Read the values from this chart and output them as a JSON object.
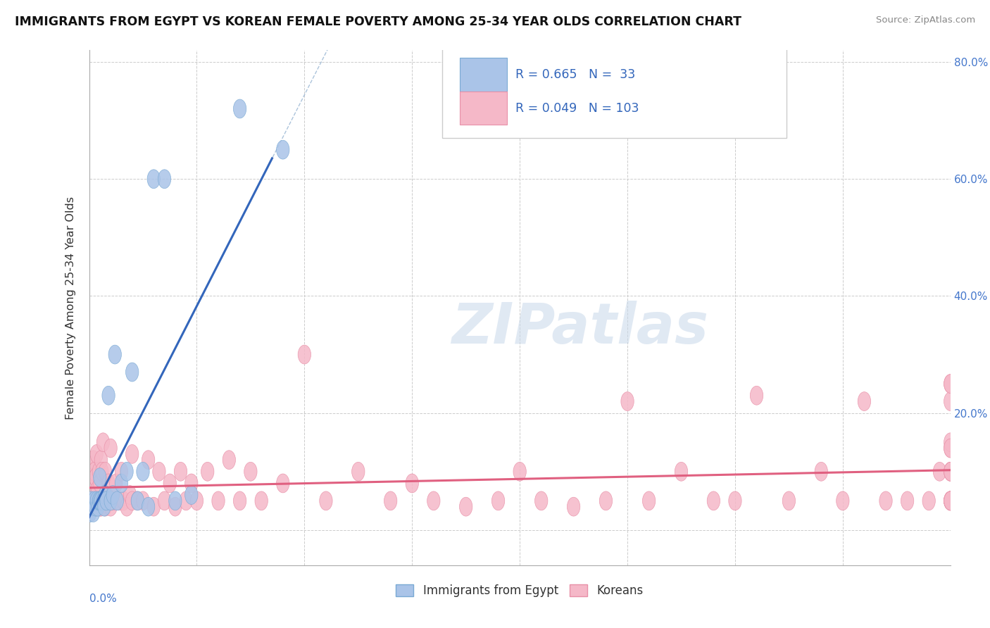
{
  "title": "IMMIGRANTS FROM EGYPT VS KOREAN FEMALE POVERTY AMONG 25-34 YEAR OLDS CORRELATION CHART",
  "source": "Source: ZipAtlas.com",
  "ylabel": "Female Poverty Among 25-34 Year Olds",
  "egypt_R": 0.665,
  "egypt_N": 33,
  "korean_R": 0.049,
  "korean_N": 103,
  "egypt_color": "#aac4e8",
  "egypt_edge": "#7aaad4",
  "egypt_line_color": "#3366bb",
  "korean_color": "#f5b8c8",
  "korean_edge": "#e890a8",
  "korean_line_color": "#e06080",
  "watermark_color": "#d8e4f0",
  "xlim": [
    0.0,
    0.8
  ],
  "ylim": [
    -0.06,
    0.82
  ],
  "egypt_x": [
    0.001,
    0.002,
    0.003,
    0.004,
    0.005,
    0.006,
    0.007,
    0.008,
    0.009,
    0.01,
    0.01,
    0.011,
    0.013,
    0.014,
    0.015,
    0.016,
    0.018,
    0.02,
    0.022,
    0.024,
    0.026,
    0.03,
    0.035,
    0.04,
    0.045,
    0.05,
    0.055,
    0.06,
    0.07,
    0.08,
    0.095,
    0.14,
    0.18
  ],
  "egypt_y": [
    0.03,
    0.05,
    0.04,
    0.03,
    0.05,
    0.04,
    0.05,
    0.04,
    0.05,
    0.05,
    0.09,
    0.05,
    0.05,
    0.04,
    0.06,
    0.05,
    0.23,
    0.05,
    0.06,
    0.3,
    0.05,
    0.08,
    0.1,
    0.27,
    0.05,
    0.1,
    0.04,
    0.6,
    0.6,
    0.05,
    0.06,
    0.72,
    0.65
  ],
  "korean_x": [
    0.001,
    0.001,
    0.002,
    0.002,
    0.003,
    0.003,
    0.004,
    0.004,
    0.005,
    0.005,
    0.006,
    0.006,
    0.007,
    0.007,
    0.008,
    0.008,
    0.009,
    0.009,
    0.01,
    0.01,
    0.011,
    0.011,
    0.012,
    0.012,
    0.013,
    0.013,
    0.015,
    0.015,
    0.017,
    0.018,
    0.02,
    0.02,
    0.022,
    0.025,
    0.028,
    0.03,
    0.032,
    0.035,
    0.038,
    0.04,
    0.04,
    0.045,
    0.05,
    0.055,
    0.06,
    0.065,
    0.07,
    0.075,
    0.08,
    0.085,
    0.09,
    0.095,
    0.1,
    0.11,
    0.12,
    0.13,
    0.14,
    0.15,
    0.16,
    0.18,
    0.2,
    0.22,
    0.25,
    0.28,
    0.3,
    0.32,
    0.35,
    0.38,
    0.4,
    0.42,
    0.45,
    0.48,
    0.5,
    0.52,
    0.55,
    0.58,
    0.6,
    0.62,
    0.65,
    0.68,
    0.7,
    0.72,
    0.74,
    0.76,
    0.78,
    0.79,
    0.8,
    0.8,
    0.8,
    0.8,
    0.8,
    0.8,
    0.8,
    0.8,
    0.8,
    0.8,
    0.8,
    0.8,
    0.8,
    0.8,
    0.8,
    0.8,
    0.8
  ],
  "korean_y": [
    0.06,
    0.11,
    0.05,
    0.09,
    0.04,
    0.08,
    0.05,
    0.12,
    0.04,
    0.1,
    0.05,
    0.09,
    0.05,
    0.13,
    0.04,
    0.07,
    0.05,
    0.1,
    0.04,
    0.08,
    0.04,
    0.12,
    0.05,
    0.1,
    0.05,
    0.15,
    0.04,
    0.1,
    0.05,
    0.08,
    0.04,
    0.14,
    0.05,
    0.08,
    0.05,
    0.1,
    0.05,
    0.04,
    0.06,
    0.05,
    0.13,
    0.05,
    0.05,
    0.12,
    0.04,
    0.1,
    0.05,
    0.08,
    0.04,
    0.1,
    0.05,
    0.08,
    0.05,
    0.1,
    0.05,
    0.12,
    0.05,
    0.1,
    0.05,
    0.08,
    0.3,
    0.05,
    0.1,
    0.05,
    0.08,
    0.05,
    0.04,
    0.05,
    0.1,
    0.05,
    0.04,
    0.05,
    0.22,
    0.05,
    0.1,
    0.05,
    0.05,
    0.23,
    0.05,
    0.1,
    0.05,
    0.22,
    0.05,
    0.05,
    0.05,
    0.1,
    0.05,
    0.14,
    0.05,
    0.25,
    0.05,
    0.1,
    0.22,
    0.05,
    0.15,
    0.05,
    0.05,
    0.1,
    0.14,
    0.25,
    0.05,
    0.1,
    0.05
  ]
}
